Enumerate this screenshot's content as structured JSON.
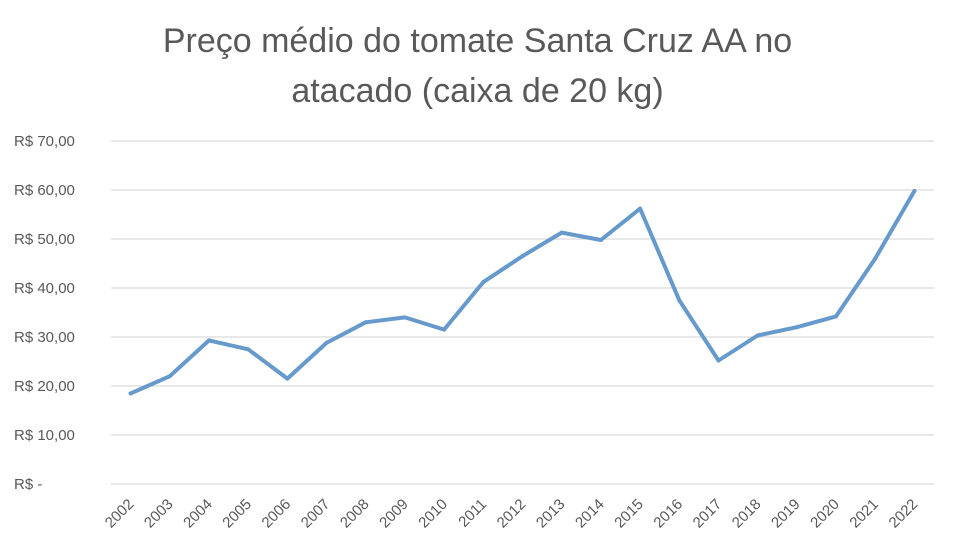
{
  "chart_data": {
    "type": "line",
    "title": "Preço médio do tomate Santa Cruz AA no atacado (caixa de 20 kg)",
    "title_lines": [
      "Preço médio do tomate Santa Cruz AA no",
      "atacado (caixa de 20 kg)"
    ],
    "xlabel": "",
    "ylabel": "",
    "categories": [
      "2002",
      "2003",
      "2004",
      "2005",
      "2006",
      "2007",
      "2008",
      "2009",
      "2010",
      "2011",
      "2012",
      "2013",
      "2014",
      "2015",
      "2016",
      "2017",
      "2018",
      "2019",
      "2020",
      "2021",
      "2022"
    ],
    "series": [
      {
        "values": [
          18.5,
          22.0,
          29.3,
          27.5,
          21.5,
          28.8,
          33.0,
          34.0,
          31.5,
          41.2,
          46.5,
          51.3,
          49.8,
          56.2,
          37.5,
          25.2,
          30.3,
          32.0,
          34.2,
          46.0,
          59.8
        ],
        "color": "#6699cc"
      }
    ],
    "ylim": [
      0,
      70
    ],
    "y_ticks": [
      0,
      10,
      20,
      30,
      40,
      50,
      60,
      70
    ],
    "y_tick_labels": [
      "R$ -",
      "R$ 10,00",
      "R$ 20,00",
      "R$ 30,00",
      "R$ 40,00",
      "R$ 50,00",
      "R$ 60,00",
      "R$ 70,00"
    ],
    "grid": true,
    "legend": "none",
    "colors": {
      "line": "#6699cc",
      "grid": "#d9d9d9",
      "text": "#595959"
    }
  }
}
